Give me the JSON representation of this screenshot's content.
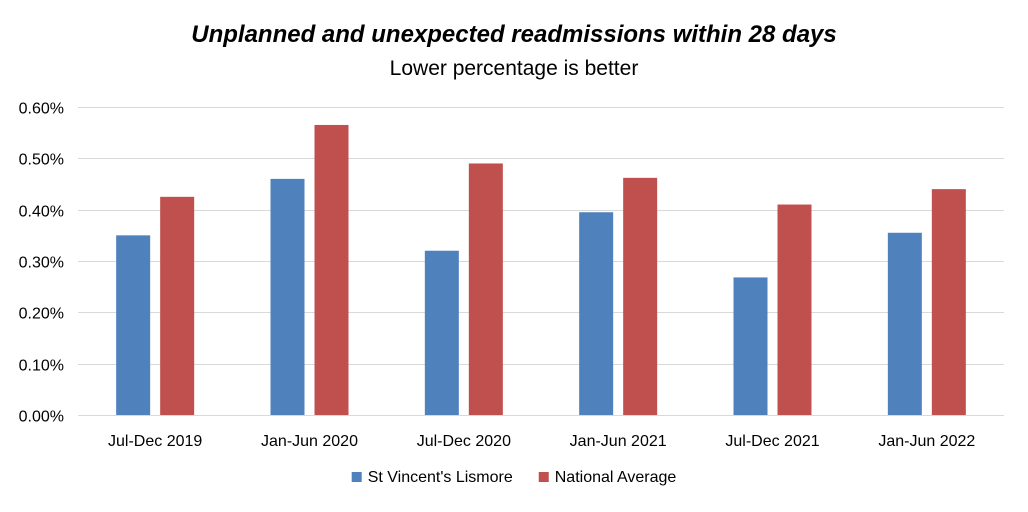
{
  "chart_data": {
    "type": "bar",
    "title": "Unplanned and unexpected readmissions  within 28 days",
    "subtitle": "Lower percentage is better",
    "xlabel": "",
    "ylabel": "",
    "categories": [
      "Jul-Dec 2019",
      "Jan-Jun 2020",
      "Jul-Dec 2020",
      "Jan-Jun 2021",
      "Jul-Dec 2021",
      "Jan-Jun 2022"
    ],
    "series": [
      {
        "name": "St Vincent's Lismore",
        "color": "#4F81BD",
        "values": [
          0.35,
          0.46,
          0.32,
          0.395,
          0.268,
          0.355
        ]
      },
      {
        "name": "National Average",
        "color": "#C0504D",
        "values": [
          0.425,
          0.565,
          0.49,
          0.462,
          0.41,
          0.44
        ]
      }
    ],
    "ylim": [
      0,
      0.6
    ],
    "y_ticks": [
      0,
      0.1,
      0.2,
      0.3,
      0.4,
      0.5,
      0.6
    ],
    "y_tick_labels": [
      "0.00%",
      "0.10%",
      "0.20%",
      "0.30%",
      "0.40%",
      "0.50%",
      "0.60%"
    ],
    "grid": true,
    "legend_position": "bottom-center"
  }
}
